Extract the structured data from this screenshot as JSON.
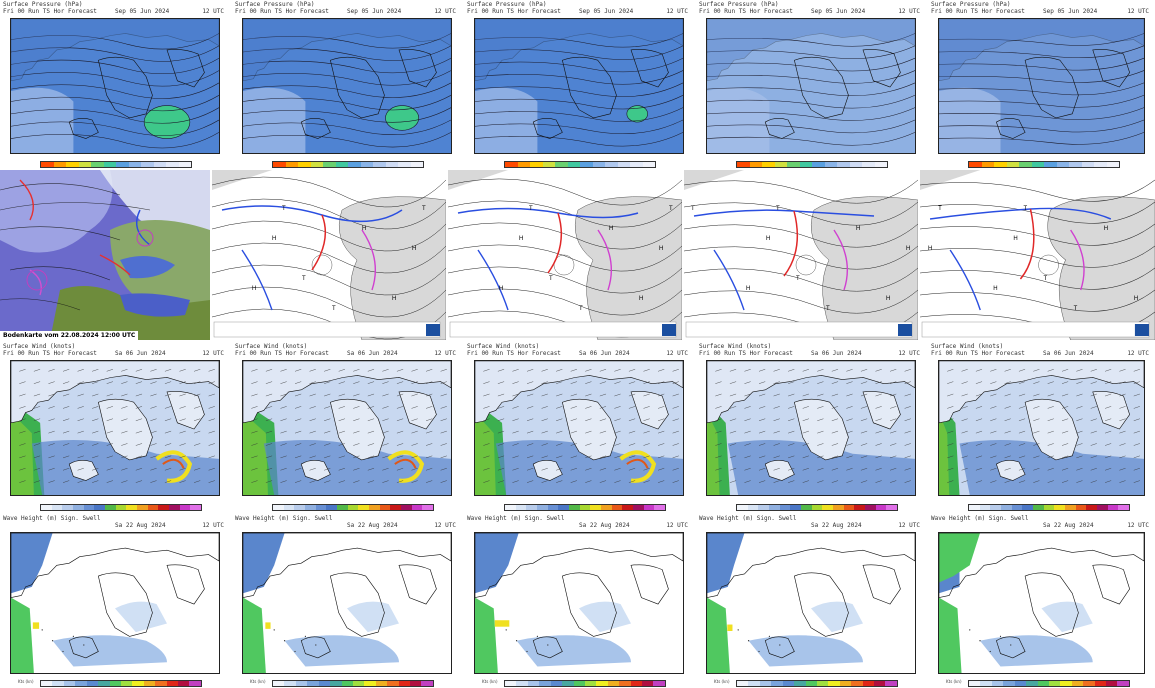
{
  "pressure_row": {
    "panels": [
      {
        "line1": "Surface Pressure (hPa)",
        "line2": "Fri 00 Run TS Hor Forecast",
        "date": "Sep 05 Jun 2024",
        "time": "12 UTC"
      },
      {
        "line1": "Surface Pressure (hPa)",
        "line2": "Fri 00 Run TS Hor Forecast",
        "date": "Sep 05 Jun 2024",
        "time": "12 UTC"
      },
      {
        "line1": "Surface Pressure (hPa)",
        "line2": "Fri 00 Run TS Hor Forecast",
        "date": "Sep 05 Jun 2024",
        "time": "12 UTC"
      },
      {
        "line1": "Surface Pressure (hPa)",
        "line2": "Fri 00 Run TS Hor Forecast",
        "date": "Sep 05 Jun 2024",
        "time": "12 UTC"
      },
      {
        "line1": "Surface Pressure (hPa)",
        "line2": "Fri 00 Run TS Hor Forecast",
        "date": "Sep 05 Jun 2024",
        "time": "12 UTC"
      }
    ],
    "colorbar": [
      "#ff4a00",
      "#ff9a00",
      "#ffd000",
      "#d0e040",
      "#6ad070",
      "#40c8a0",
      "#5aa0e0",
      "#8ab4e8",
      "#b0c8ee",
      "#d0dcf4",
      "#e4eaf8",
      "#f0f2fa"
    ]
  },
  "front_row": {
    "satellite_caption": "Bodenkarte vom 22.08.2024 12:00 UTC",
    "front_labels": [
      "H",
      "T",
      "H",
      "H",
      "T",
      "H",
      "H",
      "T",
      "T"
    ]
  },
  "wind_row": {
    "panels": [
      {
        "line1": "Surface Wind (knots)",
        "line2": "Fri 00 Run TS Hor Forecast",
        "date": "Sa 06 Jun 2024",
        "time": "12 UTC"
      },
      {
        "line1": "Surface Wind (knots)",
        "line2": "Fri 00 Run TS Hor Forecast",
        "date": "Sa 06 Jun 2024",
        "time": "12 UTC"
      },
      {
        "line1": "Surface Wind (knots)",
        "line2": "Fri 00 Run TS Hor Forecast",
        "date": "Sa 06 Jun 2024",
        "time": "12 UTC"
      },
      {
        "line1": "Surface Wind (knots)",
        "line2": "Fri 00 Run TS Hor Forecast",
        "date": "Sa 06 Jun 2024",
        "time": "12 UTC"
      },
      {
        "line1": "Surface Wind (knots)",
        "line2": "Fri 00 Run TS Hor Forecast",
        "date": "Sa 06 Jun 2024",
        "time": "12 UTC"
      }
    ],
    "colorbar": [
      "#f0f4fa",
      "#d8e4f4",
      "#b8cceb",
      "#90b0e0",
      "#6890d4",
      "#4a76c6",
      "#52b848",
      "#a8d830",
      "#f0e020",
      "#f0a020",
      "#e85818",
      "#c81818",
      "#a01060",
      "#c838c8",
      "#e070e8"
    ]
  },
  "wave_row": {
    "panels": [
      {
        "line1": "Wave Height (m) Sign. Swell",
        "line2": "",
        "date": "Sa 22 Aug 2024",
        "time": "12 UTC"
      },
      {
        "line1": "Wave Height (m) Sign. Swell",
        "line2": "",
        "date": "Sa 22 Aug 2024",
        "time": "12 UTC"
      },
      {
        "line1": "Wave Height (m) Sign. Swell",
        "line2": "",
        "date": "Sa 22 Aug 2024",
        "time": "12 UTC"
      },
      {
        "line1": "Wave Height (m) Sign. Swell",
        "line2": "",
        "date": "Sa 22 Aug 2024",
        "time": "12 UTC"
      },
      {
        "line1": "Wave Height (m) Sign. Swell",
        "line2": "",
        "date": "Sa 22 Aug 2024",
        "time": "12 UTC"
      }
    ],
    "colorbar": [
      "#f0f4fa",
      "#d0e0f4",
      "#a8c4ea",
      "#7aa4dc",
      "#5a8ad0",
      "#48a8a0",
      "#50c860",
      "#a0e040",
      "#f0f020",
      "#f0b020",
      "#f07020",
      "#e02818",
      "#b01040",
      "#c040c0"
    ],
    "colorbar_label": "Kts (kn)"
  }
}
